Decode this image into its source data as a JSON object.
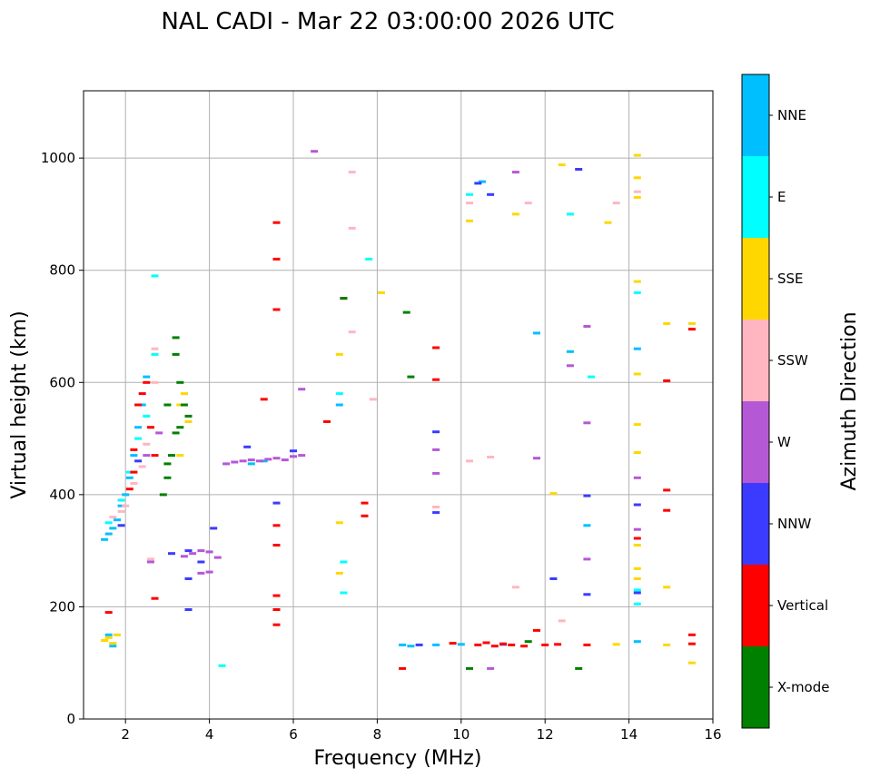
{
  "chart_data": {
    "type": "scatter",
    "title": "NAL CADI - Mar 22 03:00:00 2026 UTC",
    "xlabel": "Frequency (MHz)",
    "ylabel": "Virtual height (km)",
    "xlim": [
      1,
      16
    ],
    "ylim": [
      0,
      1120
    ],
    "xticks": [
      2,
      4,
      6,
      8,
      10,
      12,
      14,
      16
    ],
    "yticks": [
      0,
      200,
      400,
      600,
      800,
      1000
    ],
    "grid": true,
    "colorbar": {
      "label": "Azimuth Direction",
      "categories": [
        {
          "name": "X-mode",
          "color": "#008000"
        },
        {
          "name": "Vertical",
          "color": "#ff0000"
        },
        {
          "name": "NNW",
          "color": "#3b3bff"
        },
        {
          "name": "W",
          "color": "#b558d6"
        },
        {
          "name": "SSW",
          "color": "#ffb6c1"
        },
        {
          "name": "SSE",
          "color": "#ffd700"
        },
        {
          "name": "E",
          "color": "#00ffff"
        },
        {
          "name": "NNE",
          "color": "#00bfff"
        }
      ]
    },
    "groups": [
      {
        "cat": "NNE",
        "points": [
          [
            1.5,
            320
          ],
          [
            1.6,
            330
          ],
          [
            1.7,
            340
          ],
          [
            1.8,
            355
          ],
          [
            1.9,
            380
          ],
          [
            2.0,
            400
          ],
          [
            2.1,
            430
          ],
          [
            2.2,
            470
          ],
          [
            2.3,
            520
          ],
          [
            2.4,
            560
          ],
          [
            2.5,
            610
          ],
          [
            1.6,
            150
          ],
          [
            1.7,
            130
          ],
          [
            5.0,
            455
          ],
          [
            5.3,
            460
          ],
          [
            8.6,
            132
          ],
          [
            8.8,
            130
          ],
          [
            9.4,
            132
          ],
          [
            10.0,
            133
          ],
          [
            10.5,
            958
          ],
          [
            11.8,
            688
          ],
          [
            12.6,
            655
          ],
          [
            13.0,
            345
          ],
          [
            14.2,
            660
          ],
          [
            14.2,
            138
          ],
          [
            7.1,
            560
          ]
        ]
      },
      {
        "cat": "E",
        "points": [
          [
            1.6,
            350
          ],
          [
            1.9,
            390
          ],
          [
            2.1,
            440
          ],
          [
            2.3,
            500
          ],
          [
            2.5,
            540
          ],
          [
            2.7,
            650
          ],
          [
            2.7,
            790
          ],
          [
            7.1,
            580
          ],
          [
            7.2,
            280
          ],
          [
            7.2,
            225
          ],
          [
            7.8,
            820
          ],
          [
            10.2,
            935
          ],
          [
            12.6,
            900
          ],
          [
            13.1,
            610
          ],
          [
            14.2,
            760
          ],
          [
            14.2,
            230
          ],
          [
            14.2,
            205
          ],
          [
            4.3,
            95
          ]
        ]
      },
      {
        "cat": "SSE",
        "points": [
          [
            1.5,
            140
          ],
          [
            1.6,
            145
          ],
          [
            1.7,
            135
          ],
          [
            1.8,
            150
          ],
          [
            3.3,
            560
          ],
          [
            3.4,
            580
          ],
          [
            3.5,
            530
          ],
          [
            3.3,
            470
          ],
          [
            7.1,
            650
          ],
          [
            7.1,
            350
          ],
          [
            7.1,
            260
          ],
          [
            8.1,
            760
          ],
          [
            10.2,
            888
          ],
          [
            11.3,
            900
          ],
          [
            12.2,
            402
          ],
          [
            12.4,
            988
          ],
          [
            13.5,
            885
          ],
          [
            14.2,
            1005
          ],
          [
            14.2,
            965
          ],
          [
            14.2,
            930
          ],
          [
            14.2,
            780
          ],
          [
            14.2,
            615
          ],
          [
            14.2,
            525
          ],
          [
            14.2,
            475
          ],
          [
            14.2,
            310
          ],
          [
            14.2,
            268
          ],
          [
            14.2,
            250
          ],
          [
            14.9,
            705
          ],
          [
            14.9,
            235
          ],
          [
            15.5,
            705
          ],
          [
            15.5,
            100
          ],
          [
            14.9,
            132
          ],
          [
            13.7,
            133
          ]
        ]
      },
      {
        "cat": "SSW",
        "points": [
          [
            1.7,
            360
          ],
          [
            1.9,
            370
          ],
          [
            2.0,
            380
          ],
          [
            2.2,
            420
          ],
          [
            2.4,
            450
          ],
          [
            2.5,
            490
          ],
          [
            2.6,
            520
          ],
          [
            2.7,
            600
          ],
          [
            2.7,
            660
          ],
          [
            2.6,
            285
          ],
          [
            7.4,
            875
          ],
          [
            7.4,
            975
          ],
          [
            7.4,
            690
          ],
          [
            7.9,
            570
          ],
          [
            10.2,
            920
          ],
          [
            10.2,
            460
          ],
          [
            10.7,
            467
          ],
          [
            11.3,
            235
          ],
          [
            11.6,
            920
          ],
          [
            9.4,
            378
          ],
          [
            12.4,
            175
          ],
          [
            13.7,
            920
          ],
          [
            14.2,
            940
          ]
        ]
      },
      {
        "cat": "W",
        "points": [
          [
            2.5,
            470
          ],
          [
            2.8,
            510
          ],
          [
            2.6,
            280
          ],
          [
            3.4,
            290
          ],
          [
            3.6,
            295
          ],
          [
            3.8,
            300
          ],
          [
            4.0,
            298
          ],
          [
            4.2,
            288
          ],
          [
            3.8,
            260
          ],
          [
            4.0,
            262
          ],
          [
            4.4,
            455
          ],
          [
            4.6,
            458
          ],
          [
            4.8,
            460
          ],
          [
            5.0,
            462
          ],
          [
            5.2,
            460
          ],
          [
            5.4,
            463
          ],
          [
            5.6,
            465
          ],
          [
            5.8,
            462
          ],
          [
            6.0,
            468
          ],
          [
            6.2,
            470
          ],
          [
            6.5,
            1012
          ],
          [
            6.2,
            588
          ],
          [
            9.4,
            480
          ],
          [
            9.4,
            438
          ],
          [
            11.3,
            975
          ],
          [
            11.8,
            465
          ],
          [
            13.0,
            700
          ],
          [
            13.0,
            528
          ],
          [
            13.0,
            285
          ],
          [
            14.2,
            338
          ],
          [
            14.2,
            430
          ],
          [
            12.6,
            630
          ],
          [
            10.7,
            90
          ]
        ]
      },
      {
        "cat": "NNW",
        "points": [
          [
            1.9,
            345
          ],
          [
            2.3,
            460
          ],
          [
            3.1,
            295
          ],
          [
            3.5,
            250
          ],
          [
            3.5,
            300
          ],
          [
            3.8,
            280
          ],
          [
            4.1,
            340
          ],
          [
            3.5,
            195
          ],
          [
            4.9,
            485
          ],
          [
            5.6,
            385
          ],
          [
            6.0,
            478
          ],
          [
            10.4,
            955
          ],
          [
            10.7,
            935
          ],
          [
            9.4,
            512
          ],
          [
            9.4,
            368
          ],
          [
            12.2,
            250
          ],
          [
            12.8,
            980
          ],
          [
            13.0,
            398
          ],
          [
            13.0,
            222
          ],
          [
            14.2,
            382
          ],
          [
            14.2,
            225
          ],
          [
            11.0,
            133
          ],
          [
            9.0,
            132
          ]
        ]
      },
      {
        "cat": "Vertical",
        "points": [
          [
            1.6,
            190
          ],
          [
            2.1,
            410
          ],
          [
            2.2,
            440
          ],
          [
            2.2,
            480
          ],
          [
            2.3,
            560
          ],
          [
            2.4,
            580
          ],
          [
            2.5,
            600
          ],
          [
            2.6,
            520
          ],
          [
            2.7,
            470
          ],
          [
            2.7,
            215
          ],
          [
            5.6,
            885
          ],
          [
            5.6,
            820
          ],
          [
            5.6,
            730
          ],
          [
            5.6,
            345
          ],
          [
            5.6,
            310
          ],
          [
            5.6,
            220
          ],
          [
            5.6,
            195
          ],
          [
            5.6,
            168
          ],
          [
            5.3,
            570
          ],
          [
            6.8,
            530
          ],
          [
            7.2,
            750
          ],
          [
            7.7,
            385
          ],
          [
            7.7,
            362
          ],
          [
            9.4,
            662
          ],
          [
            9.4,
            605
          ],
          [
            9.8,
            135
          ],
          [
            10.4,
            132
          ],
          [
            10.6,
            136
          ],
          [
            10.8,
            130
          ],
          [
            11.0,
            134
          ],
          [
            11.2,
            132
          ],
          [
            11.5,
            130
          ],
          [
            11.8,
            158
          ],
          [
            12.0,
            132
          ],
          [
            12.3,
            133
          ],
          [
            13.0,
            132
          ],
          [
            14.2,
            322
          ],
          [
            14.9,
            603
          ],
          [
            14.9,
            408
          ],
          [
            14.9,
            372
          ],
          [
            15.5,
            695
          ],
          [
            15.5,
            150
          ],
          [
            15.5,
            134
          ],
          [
            8.6,
            90
          ]
        ]
      },
      {
        "cat": "X-mode",
        "points": [
          [
            2.9,
            400
          ],
          [
            3.0,
            430
          ],
          [
            3.1,
            470
          ],
          [
            3.2,
            510
          ],
          [
            3.0,
            560
          ],
          [
            3.3,
            600
          ],
          [
            3.2,
            650
          ],
          [
            3.4,
            560
          ],
          [
            3.3,
            520
          ],
          [
            3.5,
            540
          ],
          [
            3.2,
            680
          ],
          [
            3.0,
            455
          ],
          [
            8.8,
            610
          ],
          [
            8.7,
            725
          ],
          [
            10.2,
            90
          ],
          [
            11.6,
            138
          ],
          [
            12.8,
            90
          ],
          [
            7.2,
            750
          ]
        ]
      }
    ]
  }
}
